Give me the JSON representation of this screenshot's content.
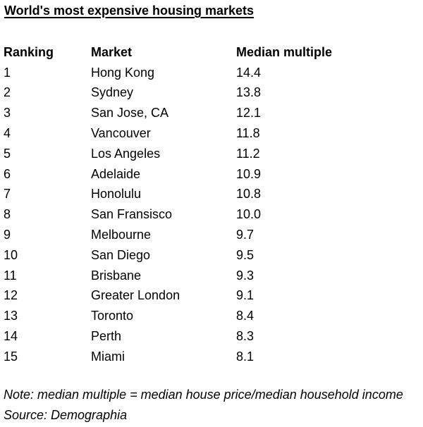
{
  "title": "World's most expensive housing markets",
  "table": {
    "headers": [
      "Ranking",
      "Market",
      "Median multiple"
    ],
    "rows": [
      [
        "1",
        "Hong Kong",
        "14.4"
      ],
      [
        "2",
        "Sydney",
        "13.8"
      ],
      [
        "3",
        "San Jose, CA",
        "12.1"
      ],
      [
        "4",
        "Vancouver",
        "11.8"
      ],
      [
        "5",
        "Los Angeles",
        "11.2"
      ],
      [
        "6",
        "Adelaide",
        "10.9"
      ],
      [
        "7",
        "Honolulu",
        "10.8"
      ],
      [
        "8",
        "San Fransisco",
        "10.0"
      ],
      [
        "9",
        "Melbourne",
        "9.7"
      ],
      [
        "10",
        "San Diego",
        "9.5"
      ],
      [
        "11",
        "Brisbane",
        "9.3"
      ],
      [
        "12",
        "Greater London",
        "9.1"
      ],
      [
        "13",
        "Toronto",
        "8.4"
      ],
      [
        "14",
        "Perth",
        "8.3"
      ],
      [
        "15",
        "Miami",
        "8.1"
      ]
    ]
  },
  "note": "Note: median multiple = median house price/median household income",
  "source": "Source: Demographia"
}
